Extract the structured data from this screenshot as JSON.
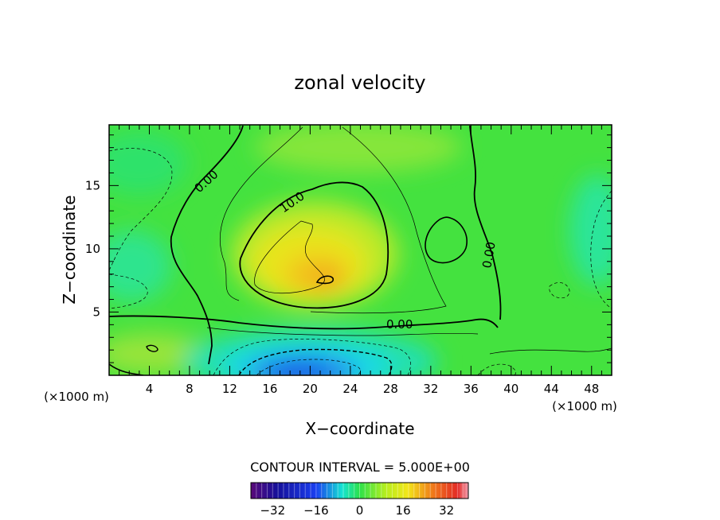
{
  "chart_data": {
    "type": "heatmap",
    "title": "zonal velocity",
    "xlabel": "X−coordinate",
    "ylabel": "Z−coordinate",
    "x_unit_left": "(×1000 m)",
    "x_unit_right": "(×1000 m)",
    "xlim": [
      0,
      50
    ],
    "ylim": [
      0,
      19.8
    ],
    "x_ticks": [
      "4",
      "8",
      "12",
      "16",
      "20",
      "24",
      "28",
      "32",
      "36",
      "40",
      "44",
      "48"
    ],
    "y_ticks": [
      "5",
      "10",
      "15"
    ],
    "contour_interval_text": "CONTOUR INTERVAL = 5.000E+00",
    "contour_labels": [
      "0.00",
      "10.0",
      "0.00",
      "0.00"
    ],
    "colorbar": {
      "range": [
        -40,
        40
      ],
      "ticks": [
        "−32",
        "−16",
        "0",
        "16",
        "32"
      ]
    },
    "grid": false,
    "value_features": [
      {
        "kind": "maximum",
        "x": 21.5,
        "z": 7.8,
        "value": 17
      },
      {
        "kind": "minimum",
        "x": 20,
        "z": 0.5,
        "value": -20
      }
    ]
  }
}
